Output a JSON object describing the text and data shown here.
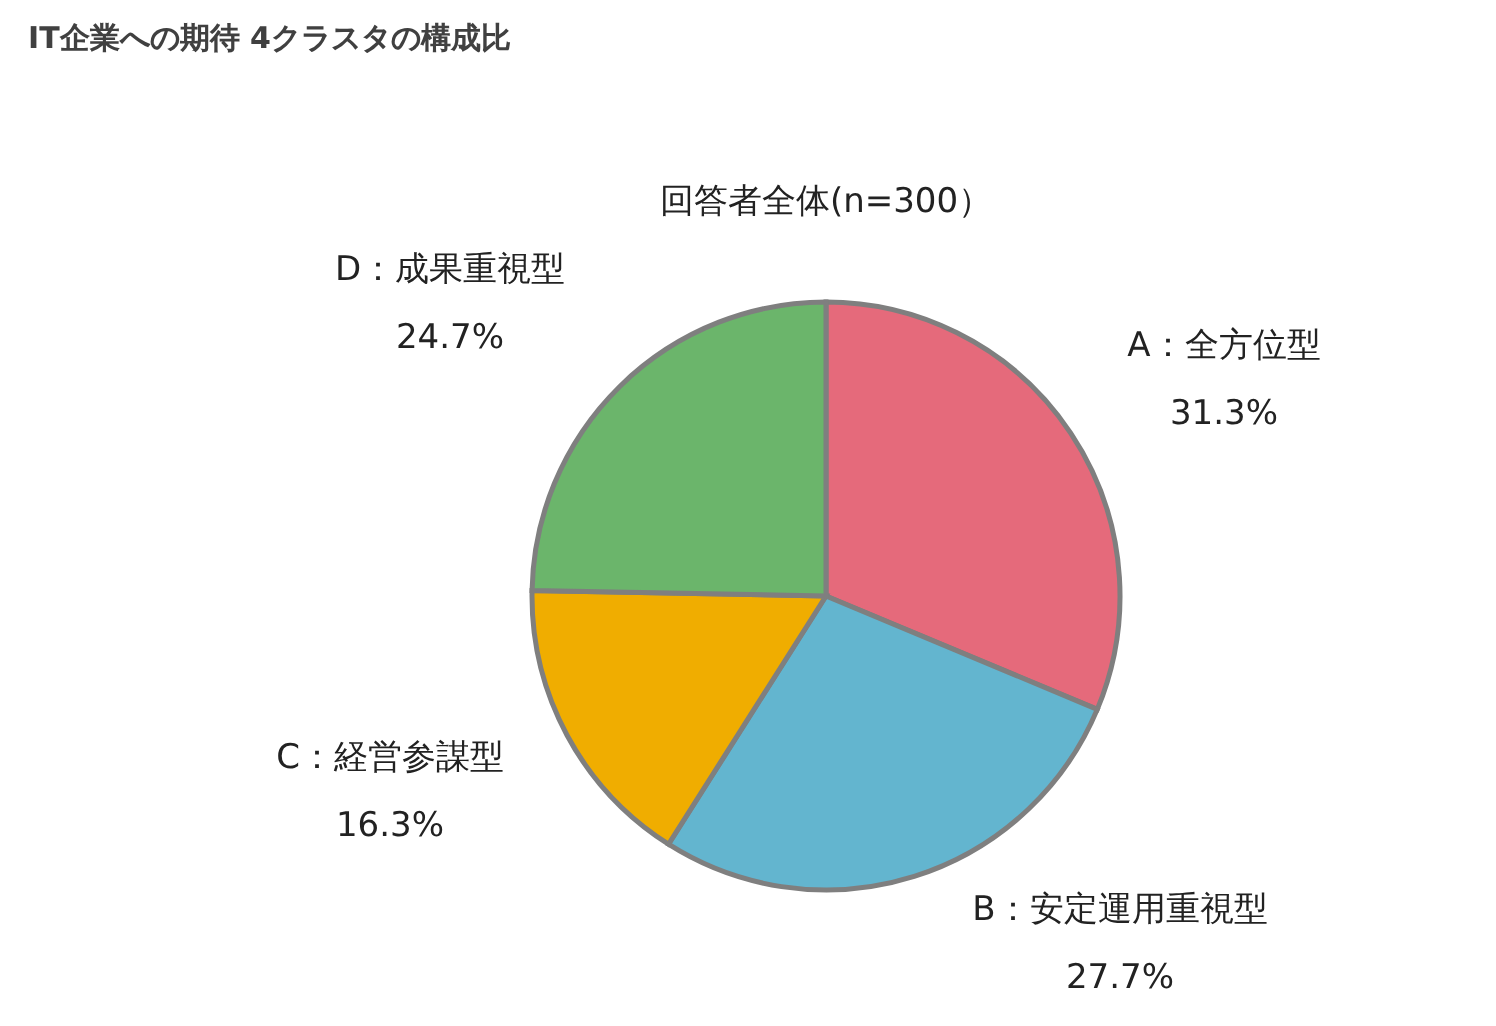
{
  "chart_data": {
    "type": "pie",
    "title": "IT企業への期待 4クラスタの構成比",
    "subtitle": "回答者全体(n=300）",
    "categories": [
      "A：全方位型",
      "B：安定運用重視型",
      "C：経営参謀型",
      "D：成果重視型"
    ],
    "values": [
      31.3,
      27.7,
      16.3,
      24.7
    ],
    "value_labels": [
      "31.3%",
      "27.7%",
      "16.3%",
      "24.7%"
    ],
    "colors": [
      "#e56a7b",
      "#63b5cf",
      "#f0ad00",
      "#6bb56b"
    ],
    "legend": false
  }
}
